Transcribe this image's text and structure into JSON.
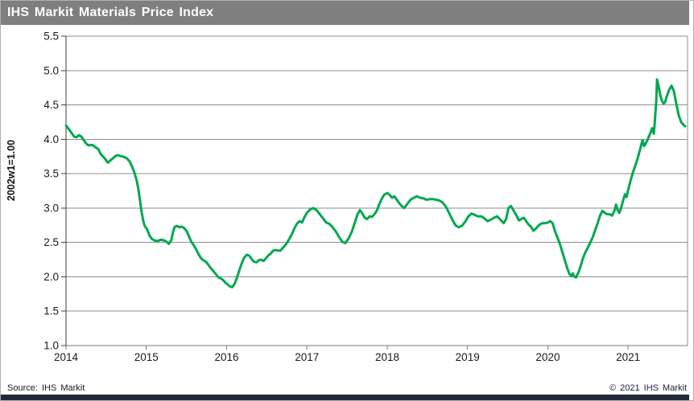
{
  "title_bar": {
    "title": "IHS Markit Materials Price Index"
  },
  "footer": {
    "source": "Source: IHS Markit",
    "copyright": "© 2021 IHS Markit"
  },
  "colors": {
    "accent_green": "#00A84F",
    "title_bar_bg": "#7F7F7F",
    "title_text": "#FFFFFF",
    "bottom_bar_bg": "#232A3B",
    "gridline": "#8C8C8C",
    "axis": "#3F3F3F",
    "tick_label": "#1A1A1A"
  },
  "chart_data": {
    "type": "line",
    "title": "IHS Markit Materials Price Index",
    "xlabel": "",
    "ylabel": "2002w1=1.00",
    "ylim": [
      1.0,
      5.5
    ],
    "xlim": [
      2014.0,
      2021.74
    ],
    "y_ticks": [
      "1.0",
      "1.5",
      "2.0",
      "2.5",
      "3.0",
      "3.5",
      "4.0",
      "4.5",
      "5.0",
      "5.5"
    ],
    "x_ticks": [
      "2014",
      "2015",
      "2016",
      "2017",
      "2018",
      "2019",
      "2020",
      "2021"
    ],
    "grid": "horizontal",
    "legend": "none",
    "series": [
      {
        "name": "IHS Markit Materials Price Index",
        "color": "#00A84F",
        "points": [
          [
            2014.0,
            4.2
          ],
          [
            2014.04,
            4.14
          ],
          [
            2014.07,
            4.09
          ],
          [
            2014.1,
            4.04
          ],
          [
            2014.13,
            4.03
          ],
          [
            2014.16,
            4.06
          ],
          [
            2014.19,
            4.04
          ],
          [
            2014.22,
            3.99
          ],
          [
            2014.25,
            3.94
          ],
          [
            2014.28,
            3.91
          ],
          [
            2014.31,
            3.92
          ],
          [
            2014.34,
            3.91
          ],
          [
            2014.37,
            3.88
          ],
          [
            2014.4,
            3.86
          ],
          [
            2014.43,
            3.79
          ],
          [
            2014.46,
            3.75
          ],
          [
            2014.49,
            3.71
          ],
          [
            2014.52,
            3.66
          ],
          [
            2014.55,
            3.69
          ],
          [
            2014.58,
            3.72
          ],
          [
            2014.61,
            3.75
          ],
          [
            2014.64,
            3.77
          ],
          [
            2014.67,
            3.76
          ],
          [
            2014.7,
            3.75
          ],
          [
            2014.73,
            3.74
          ],
          [
            2014.76,
            3.72
          ],
          [
            2014.79,
            3.68
          ],
          [
            2014.82,
            3.61
          ],
          [
            2014.85,
            3.52
          ],
          [
            2014.88,
            3.4
          ],
          [
            2014.9,
            3.28
          ],
          [
            2014.92,
            3.12
          ],
          [
            2014.94,
            2.95
          ],
          [
            2014.96,
            2.82
          ],
          [
            2014.98,
            2.74
          ],
          [
            2015.01,
            2.69
          ],
          [
            2015.04,
            2.6
          ],
          [
            2015.07,
            2.55
          ],
          [
            2015.1,
            2.53
          ],
          [
            2015.14,
            2.52
          ],
          [
            2015.18,
            2.54
          ],
          [
            2015.22,
            2.53
          ],
          [
            2015.25,
            2.51
          ],
          [
            2015.28,
            2.48
          ],
          [
            2015.31,
            2.53
          ],
          [
            2015.33,
            2.64
          ],
          [
            2015.35,
            2.72
          ],
          [
            2015.38,
            2.74
          ],
          [
            2015.41,
            2.72
          ],
          [
            2015.44,
            2.73
          ],
          [
            2015.47,
            2.71
          ],
          [
            2015.5,
            2.67
          ],
          [
            2015.53,
            2.59
          ],
          [
            2015.56,
            2.51
          ],
          [
            2015.59,
            2.46
          ],
          [
            2015.62,
            2.4
          ],
          [
            2015.65,
            2.33
          ],
          [
            2015.68,
            2.27
          ],
          [
            2015.71,
            2.24
          ],
          [
            2015.74,
            2.22
          ],
          [
            2015.77,
            2.18
          ],
          [
            2015.8,
            2.13
          ],
          [
            2015.83,
            2.09
          ],
          [
            2015.86,
            2.05
          ],
          [
            2015.89,
            2.0
          ],
          [
            2015.92,
            1.98
          ],
          [
            2015.95,
            1.96
          ],
          [
            2015.98,
            1.92
          ],
          [
            2016.01,
            1.89
          ],
          [
            2016.04,
            1.86
          ],
          [
            2016.07,
            1.85
          ],
          [
            2016.1,
            1.9
          ],
          [
            2016.13,
            1.99
          ],
          [
            2016.16,
            2.1
          ],
          [
            2016.19,
            2.2
          ],
          [
            2016.22,
            2.28
          ],
          [
            2016.25,
            2.32
          ],
          [
            2016.28,
            2.31
          ],
          [
            2016.31,
            2.26
          ],
          [
            2016.34,
            2.22
          ],
          [
            2016.37,
            2.21
          ],
          [
            2016.4,
            2.24
          ],
          [
            2016.43,
            2.25
          ],
          [
            2016.46,
            2.23
          ],
          [
            2016.49,
            2.27
          ],
          [
            2016.52,
            2.31
          ],
          [
            2016.55,
            2.34
          ],
          [
            2016.58,
            2.38
          ],
          [
            2016.61,
            2.39
          ],
          [
            2016.64,
            2.38
          ],
          [
            2016.67,
            2.38
          ],
          [
            2016.7,
            2.42
          ],
          [
            2016.73,
            2.46
          ],
          [
            2016.76,
            2.51
          ],
          [
            2016.79,
            2.57
          ],
          [
            2016.82,
            2.64
          ],
          [
            2016.85,
            2.72
          ],
          [
            2016.88,
            2.78
          ],
          [
            2016.91,
            2.81
          ],
          [
            2016.94,
            2.79
          ],
          [
            2016.97,
            2.87
          ],
          [
            2017.0,
            2.93
          ],
          [
            2017.04,
            2.98
          ],
          [
            2017.08,
            3.0
          ],
          [
            2017.12,
            2.97
          ],
          [
            2017.16,
            2.91
          ],
          [
            2017.2,
            2.85
          ],
          [
            2017.24,
            2.79
          ],
          [
            2017.28,
            2.77
          ],
          [
            2017.32,
            2.72
          ],
          [
            2017.36,
            2.66
          ],
          [
            2017.4,
            2.58
          ],
          [
            2017.44,
            2.51
          ],
          [
            2017.48,
            2.49
          ],
          [
            2017.52,
            2.56
          ],
          [
            2017.56,
            2.66
          ],
          [
            2017.6,
            2.8
          ],
          [
            2017.63,
            2.91
          ],
          [
            2017.66,
            2.97
          ],
          [
            2017.69,
            2.92
          ],
          [
            2017.72,
            2.86
          ],
          [
            2017.75,
            2.84
          ],
          [
            2017.78,
            2.88
          ],
          [
            2017.81,
            2.87
          ],
          [
            2017.84,
            2.91
          ],
          [
            2017.87,
            2.96
          ],
          [
            2017.9,
            3.05
          ],
          [
            2017.93,
            3.13
          ],
          [
            2017.96,
            3.19
          ],
          [
            2018.0,
            3.22
          ],
          [
            2018.03,
            3.19
          ],
          [
            2018.06,
            3.15
          ],
          [
            2018.09,
            3.17
          ],
          [
            2018.12,
            3.12
          ],
          [
            2018.15,
            3.07
          ],
          [
            2018.18,
            3.03
          ],
          [
            2018.21,
            3.0
          ],
          [
            2018.25,
            3.06
          ],
          [
            2018.29,
            3.12
          ],
          [
            2018.33,
            3.15
          ],
          [
            2018.37,
            3.17
          ],
          [
            2018.41,
            3.15
          ],
          [
            2018.45,
            3.14
          ],
          [
            2018.49,
            3.12
          ],
          [
            2018.53,
            3.13
          ],
          [
            2018.57,
            3.13
          ],
          [
            2018.61,
            3.12
          ],
          [
            2018.65,
            3.11
          ],
          [
            2018.69,
            3.08
          ],
          [
            2018.73,
            3.02
          ],
          [
            2018.77,
            2.93
          ],
          [
            2018.81,
            2.83
          ],
          [
            2018.85,
            2.75
          ],
          [
            2018.89,
            2.72
          ],
          [
            2018.93,
            2.74
          ],
          [
            2018.97,
            2.8
          ],
          [
            2019.01,
            2.88
          ],
          [
            2019.05,
            2.92
          ],
          [
            2019.09,
            2.9
          ],
          [
            2019.13,
            2.88
          ],
          [
            2019.17,
            2.88
          ],
          [
            2019.21,
            2.85
          ],
          [
            2019.25,
            2.81
          ],
          [
            2019.29,
            2.83
          ],
          [
            2019.33,
            2.86
          ],
          [
            2019.37,
            2.88
          ],
          [
            2019.41,
            2.83
          ],
          [
            2019.45,
            2.78
          ],
          [
            2019.48,
            2.84
          ],
          [
            2019.51,
            3.0
          ],
          [
            2019.54,
            3.03
          ],
          [
            2019.57,
            2.97
          ],
          [
            2019.61,
            2.89
          ],
          [
            2019.64,
            2.82
          ],
          [
            2019.67,
            2.84
          ],
          [
            2019.7,
            2.86
          ],
          [
            2019.73,
            2.81
          ],
          [
            2019.76,
            2.76
          ],
          [
            2019.79,
            2.73
          ],
          [
            2019.82,
            2.67
          ],
          [
            2019.85,
            2.7
          ],
          [
            2019.88,
            2.74
          ],
          [
            2019.91,
            2.77
          ],
          [
            2019.94,
            2.78
          ],
          [
            2019.97,
            2.78
          ],
          [
            2020.0,
            2.79
          ],
          [
            2020.03,
            2.81
          ],
          [
            2020.06,
            2.78
          ],
          [
            2020.09,
            2.66
          ],
          [
            2020.12,
            2.57
          ],
          [
            2020.15,
            2.48
          ],
          [
            2020.18,
            2.36
          ],
          [
            2020.21,
            2.25
          ],
          [
            2020.24,
            2.13
          ],
          [
            2020.27,
            2.04
          ],
          [
            2020.29,
            2.01
          ],
          [
            2020.31,
            2.05
          ],
          [
            2020.33,
            2.0
          ],
          [
            2020.35,
            1.99
          ],
          [
            2020.38,
            2.06
          ],
          [
            2020.41,
            2.16
          ],
          [
            2020.44,
            2.28
          ],
          [
            2020.47,
            2.36
          ],
          [
            2020.5,
            2.43
          ],
          [
            2020.53,
            2.5
          ],
          [
            2020.56,
            2.58
          ],
          [
            2020.59,
            2.68
          ],
          [
            2020.62,
            2.78
          ],
          [
            2020.65,
            2.89
          ],
          [
            2020.68,
            2.96
          ],
          [
            2020.71,
            2.93
          ],
          [
            2020.74,
            2.91
          ],
          [
            2020.77,
            2.91
          ],
          [
            2020.8,
            2.89
          ],
          [
            2020.83,
            2.96
          ],
          [
            2020.85,
            3.05
          ],
          [
            2020.87,
            2.97
          ],
          [
            2020.89,
            2.93
          ],
          [
            2020.91,
            2.99
          ],
          [
            2020.94,
            3.12
          ],
          [
            2020.96,
            3.2
          ],
          [
            2020.98,
            3.16
          ],
          [
            2021.0,
            3.26
          ],
          [
            2021.03,
            3.4
          ],
          [
            2021.06,
            3.52
          ],
          [
            2021.09,
            3.62
          ],
          [
            2021.12,
            3.73
          ],
          [
            2021.15,
            3.86
          ],
          [
            2021.18,
            3.99
          ],
          [
            2021.2,
            3.9
          ],
          [
            2021.22,
            3.94
          ],
          [
            2021.24,
            3.99
          ],
          [
            2021.26,
            4.04
          ],
          [
            2021.28,
            4.1
          ],
          [
            2021.3,
            4.16
          ],
          [
            2021.32,
            4.08
          ],
          [
            2021.33,
            4.22
          ],
          [
            2021.35,
            4.55
          ],
          [
            2021.36,
            4.87
          ],
          [
            2021.38,
            4.77
          ],
          [
            2021.4,
            4.64
          ],
          [
            2021.42,
            4.56
          ],
          [
            2021.44,
            4.52
          ],
          [
            2021.46,
            4.54
          ],
          [
            2021.48,
            4.62
          ],
          [
            2021.51,
            4.72
          ],
          [
            2021.54,
            4.78
          ],
          [
            2021.57,
            4.7
          ],
          [
            2021.6,
            4.52
          ],
          [
            2021.63,
            4.35
          ],
          [
            2021.66,
            4.25
          ],
          [
            2021.69,
            4.21
          ],
          [
            2021.71,
            4.19
          ]
        ]
      }
    ]
  }
}
